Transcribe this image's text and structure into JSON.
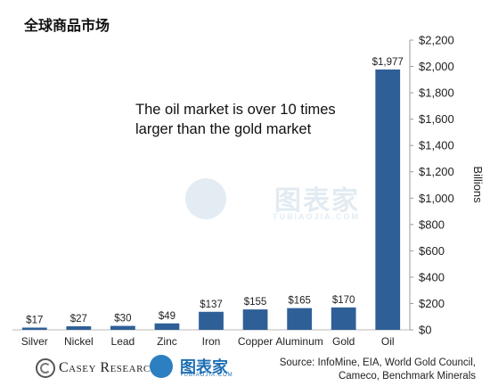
{
  "title": "全球商品市场",
  "chart_data": {
    "type": "bar",
    "categories": [
      "Silver",
      "Nickel",
      "Lead",
      "Zinc",
      "Iron",
      "Copper",
      "Aluminum",
      "Gold",
      "Oil"
    ],
    "values": [
      17,
      27,
      30,
      49,
      137,
      155,
      165,
      170,
      1977
    ],
    "value_labels": [
      "$17",
      "$27",
      "$30",
      "$49",
      "$137",
      "$155",
      "$165",
      "$170",
      "$1,977"
    ],
    "ylabel": "Billions",
    "ylim": [
      0,
      2200
    ],
    "yticks": [
      0,
      200,
      400,
      600,
      800,
      1000,
      1200,
      1400,
      1600,
      1800,
      2000,
      2200
    ],
    "ytick_labels": [
      "$0",
      "$200",
      "$400",
      "$600",
      "$800",
      "$1,000",
      "$1,200",
      "$1,400",
      "$1,600",
      "$1,800",
      "$2,000",
      "$2,200"
    ],
    "y_axis_side": "right",
    "grid": false,
    "bar_color": "#2f5f97",
    "annotation": [
      "The oil market is over 10 times",
      "larger than the gold market"
    ]
  },
  "footer": {
    "brand": "Casey Research",
    "source_lines": [
      "Source: InfoMine, EIA, World Gold Council,",
      "Cameco, Benchmark Minerals"
    ]
  },
  "watermark": {
    "logo_icon": "tubiao-logo-icon",
    "text": "图表家",
    "subtext": "TUBIAOJIA.COM"
  }
}
